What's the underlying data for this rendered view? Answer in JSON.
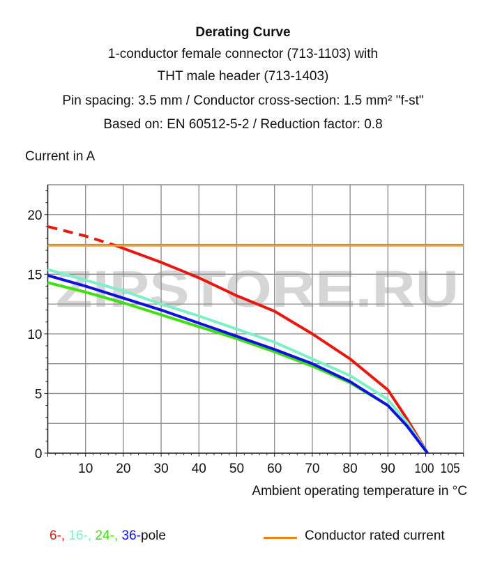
{
  "header": {
    "title": "Derating Curve",
    "lines": [
      "1-conductor female connector (713-1103) with",
      "THT male header (713-1403)",
      "Pin spacing: 3.5 mm / Conductor cross-section: 1.5 mm² \"f-st\"",
      "Based on: EN 60512-5-2 / Reduction factor: 0.8"
    ]
  },
  "watermark": "ZIPSTORE.RU",
  "chart_data": {
    "type": "line",
    "xlabel": "Ambient operating temperature in °C",
    "ylabel": "Current in A",
    "xlim": [
      0,
      110
    ],
    "ylim": [
      0,
      22.5
    ],
    "xticks": [
      10,
      20,
      30,
      40,
      50,
      60,
      70,
      80,
      90,
      100,
      105
    ],
    "yticks": [
      0,
      5,
      10,
      15,
      20
    ],
    "grid": true,
    "legend_position": "bottom",
    "legend": {
      "poles": [
        "6-,",
        "16-,",
        "24-,",
        "36-"
      ],
      "poles_suffix": "pole",
      "rated": "Conductor rated current"
    },
    "series": [
      {
        "name": "6-",
        "color": "#e8170f",
        "dashed_until_x": 18,
        "x": [
          0,
          10,
          18,
          30,
          40,
          50,
          60,
          70,
          80,
          90,
          95,
          100.5
        ],
        "y": [
          19.0,
          18.2,
          17.4,
          16.0,
          14.7,
          13.2,
          11.9,
          10.0,
          7.9,
          5.3,
          2.9,
          0
        ]
      },
      {
        "name": "16-",
        "color": "#7ef0c8",
        "x": [
          0,
          10,
          20,
          30,
          40,
          50,
          60,
          70,
          80,
          90,
          95,
          100.5
        ],
        "y": [
          15.4,
          14.5,
          13.6,
          12.5,
          11.5,
          10.4,
          9.3,
          7.9,
          6.5,
          4.5,
          2.6,
          0
        ]
      },
      {
        "name": "24-",
        "color": "#3ee010",
        "x": [
          0,
          10,
          20,
          30,
          40,
          50,
          60,
          70,
          80,
          90,
          95,
          100.5
        ],
        "y": [
          14.3,
          13.5,
          12.6,
          11.6,
          10.6,
          9.6,
          8.5,
          7.3,
          5.9,
          4.0,
          2.3,
          0
        ]
      },
      {
        "name": "36-",
        "color": "#1010e0",
        "x": [
          0,
          10,
          20,
          30,
          40,
          50,
          60,
          70,
          80,
          90,
          95,
          100.5
        ],
        "y": [
          14.9,
          14.0,
          13.0,
          12.0,
          10.9,
          9.8,
          8.7,
          7.5,
          6.0,
          4.0,
          2.3,
          0
        ]
      },
      {
        "name": "Conductor rated current",
        "color": "#f7a020",
        "x": [
          0,
          110
        ],
        "y": [
          17.4,
          17.4
        ]
      }
    ]
  }
}
